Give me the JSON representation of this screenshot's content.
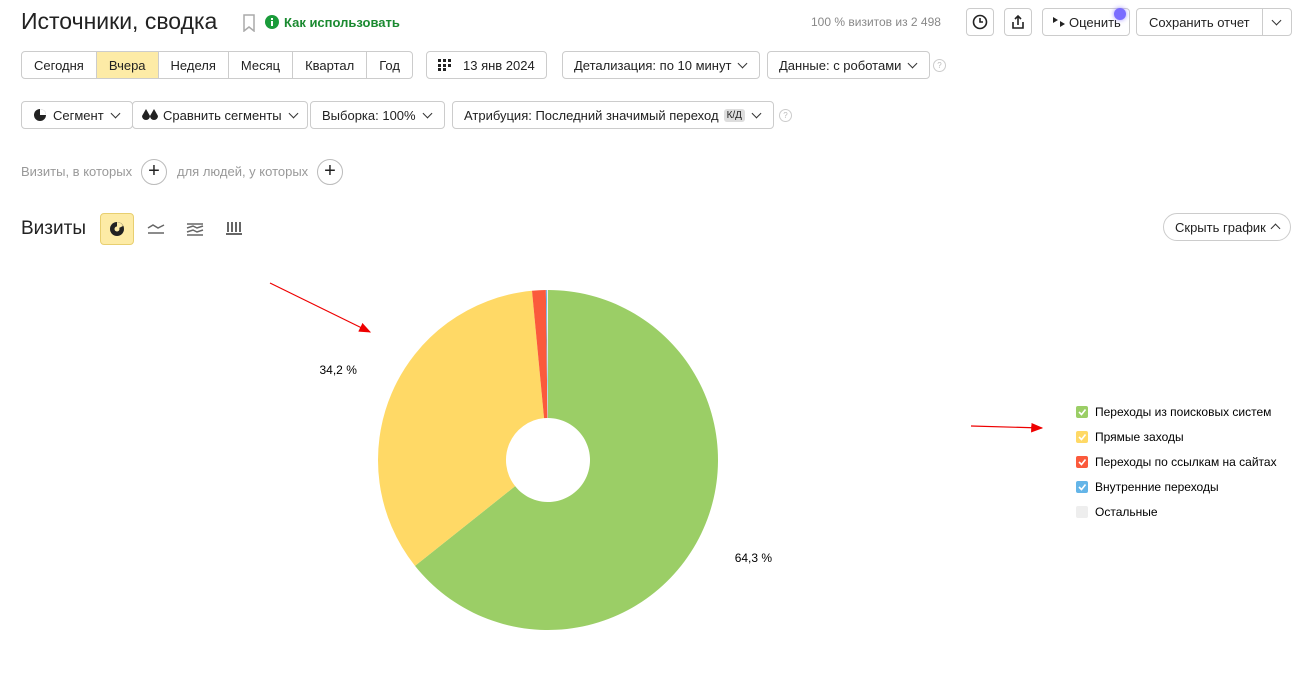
{
  "header": {
    "title": "Источники, сводка",
    "help": "Как использовать",
    "visits_info": "100 % визитов из 2 498",
    "rate": "Оценить",
    "save": "Сохранить отчет"
  },
  "periods": [
    "Сегодня",
    "Вчера",
    "Неделя",
    "Месяц",
    "Квартал",
    "Год"
  ],
  "date": "13 янв 2024",
  "detail": "Детализация: по 10 минут",
  "robots": "Данные: с роботами",
  "segment": "Сегмент",
  "compare": "Сравнить сегменты",
  "sample": "Выборка: 100%",
  "attribution": "Атрибуция: Последний значимый переход",
  "attribution_badge": "К/Д",
  "filter": {
    "visits": "Визиты, в которых",
    "people": "для людей, у которых"
  },
  "hide_chart": "Скрыть график",
  "chart_data": {
    "type": "pie",
    "title": "Визиты",
    "categories": [
      "Переходы из поисковых систем",
      "Прямые заходы",
      "Переходы по ссылкам на сайтах",
      "Внутренние переходы",
      "Остальные"
    ],
    "values": [
      64.3,
      34.2,
      1.3,
      0.1,
      0.1
    ],
    "value_labels": [
      "64,3 %",
      "34,2 %",
      null,
      null,
      null
    ],
    "colors": [
      "#9bce66",
      "#ffd966",
      "#fb5a3c",
      "#64b5e8",
      "#eeeeee"
    ]
  }
}
